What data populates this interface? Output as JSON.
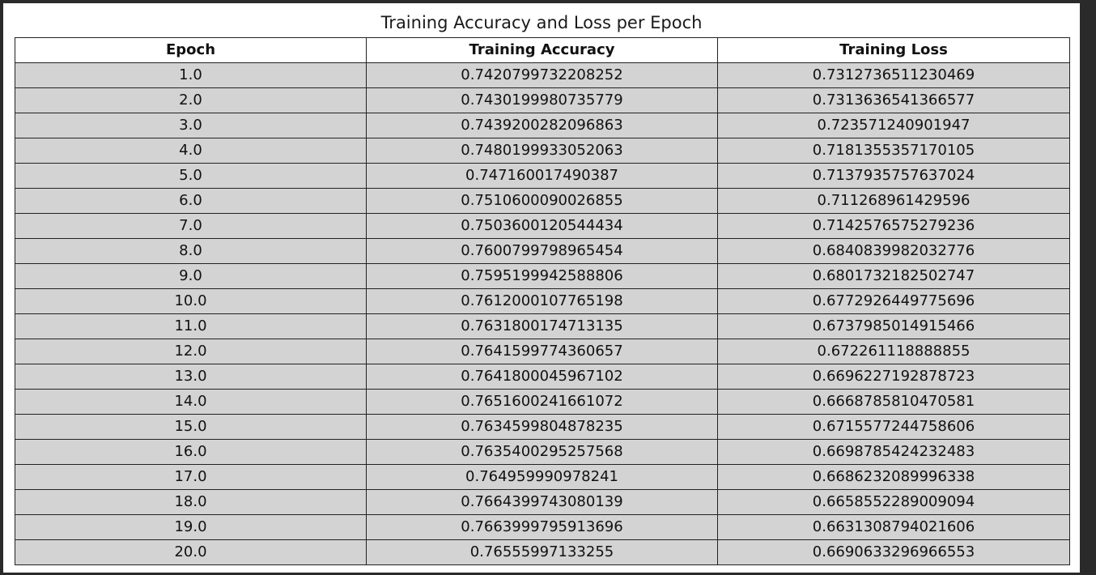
{
  "chart_data": {
    "type": "table",
    "title": "Training Accuracy and Loss per Epoch",
    "columns": [
      "Epoch",
      "Training Accuracy",
      "Training Loss"
    ],
    "rows": [
      [
        "1.0",
        "0.7420799732208252",
        "0.7312736511230469"
      ],
      [
        "2.0",
        "0.7430199980735779",
        "0.7313636541366577"
      ],
      [
        "3.0",
        "0.7439200282096863",
        "0.723571240901947"
      ],
      [
        "4.0",
        "0.7480199933052063",
        "0.7181355357170105"
      ],
      [
        "5.0",
        "0.747160017490387",
        "0.7137935757637024"
      ],
      [
        "6.0",
        "0.7510600090026855",
        "0.711268961429596"
      ],
      [
        "7.0",
        "0.7503600120544434",
        "0.7142576575279236"
      ],
      [
        "8.0",
        "0.7600799798965454",
        "0.6840839982032776"
      ],
      [
        "9.0",
        "0.7595199942588806",
        "0.6801732182502747"
      ],
      [
        "10.0",
        "0.7612000107765198",
        "0.6772926449775696"
      ],
      [
        "11.0",
        "0.7631800174713135",
        "0.6737985014915466"
      ],
      [
        "12.0",
        "0.7641599774360657",
        "0.672261118888855"
      ],
      [
        "13.0",
        "0.7641800045967102",
        "0.6696227192878723"
      ],
      [
        "14.0",
        "0.7651600241661072",
        "0.6668785810470581"
      ],
      [
        "15.0",
        "0.7634599804878235",
        "0.6715577244758606"
      ],
      [
        "16.0",
        "0.7635400295257568",
        "0.6698785424232483"
      ],
      [
        "17.0",
        "0.764959990978241",
        "0.6686232089996338"
      ],
      [
        "18.0",
        "0.7664399743080139",
        "0.6658552289009094"
      ],
      [
        "19.0",
        "0.7663999795913696",
        "0.6631308794021606"
      ],
      [
        "20.0",
        "0.76555997133255",
        "0.6690633296966553"
      ]
    ],
    "colors": {
      "header_background": "#ffffff",
      "cell_background": "#d3d3d3",
      "border": "#222222"
    }
  }
}
